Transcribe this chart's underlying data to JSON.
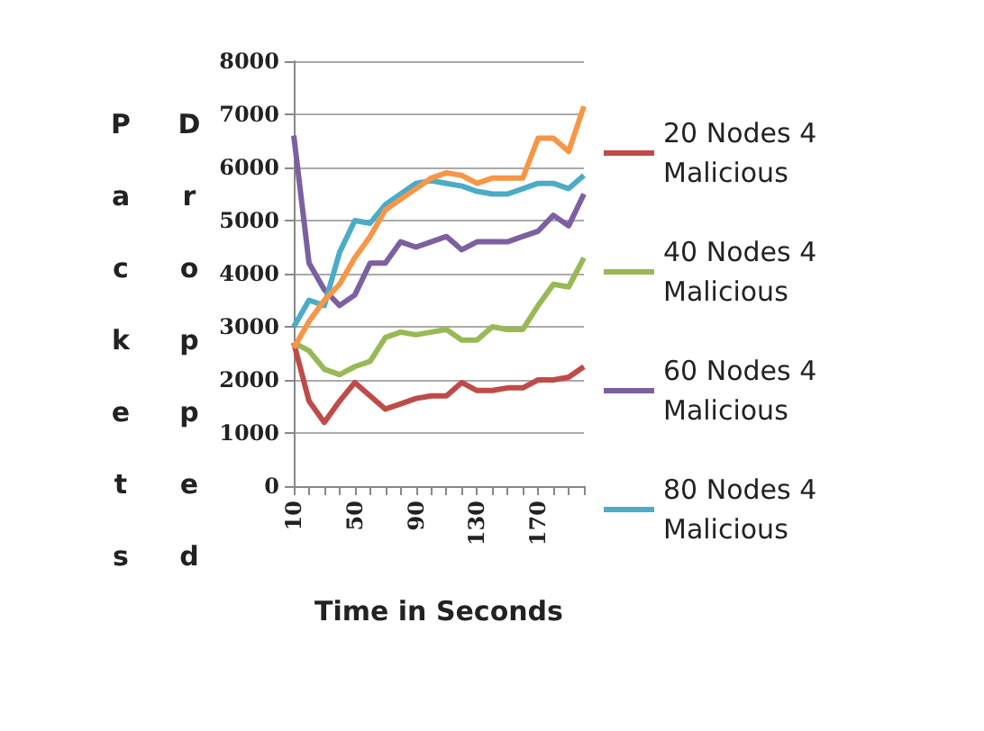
{
  "chart_data": {
    "type": "line",
    "xlabel": "Time in Seconds",
    "ylabel": "Packets Dropped",
    "categories": [
      "10",
      null,
      null,
      null,
      "50",
      null,
      null,
      null,
      "90",
      null,
      null,
      null,
      "130",
      null,
      null,
      null,
      "170",
      null,
      null,
      null
    ],
    "series": [
      {
        "name": "20 Nodes 4 Malicious",
        "color": "#be4b48",
        "values": [
          2700,
          1600,
          1200,
          1600,
          1950,
          1700,
          1450,
          1550,
          1650,
          1700,
          1700,
          1950,
          1800,
          1800,
          1850,
          1850,
          2000,
          2000,
          2050,
          2250
        ]
      },
      {
        "name": "40 Nodes 4 Malicious",
        "color": "#98b954",
        "values": [
          2700,
          2550,
          2200,
          2100,
          2250,
          2350,
          2800,
          2900,
          2850,
          2900,
          2950,
          2750,
          2750,
          3000,
          2950,
          2950,
          3400,
          3800,
          3750,
          4300
        ]
      },
      {
        "name": "60 Nodes 4 Malicious",
        "color": "#7d60a0",
        "values": [
          6600,
          4200,
          3700,
          3400,
          3600,
          4200,
          4200,
          4600,
          4500,
          4600,
          4700,
          4450,
          4600,
          4600,
          4600,
          4700,
          4800,
          5100,
          4900,
          5500
        ]
      },
      {
        "name": "80 Nodes 4 Malicious",
        "color": "#4bacc6",
        "values": [
          3000,
          3500,
          3400,
          4400,
          5000,
          4950,
          5300,
          5500,
          5700,
          5750,
          5700,
          5650,
          5550,
          5500,
          5500,
          5600,
          5700,
          5700,
          5600,
          5850
        ]
      },
      {
        "color": "#f79646",
        "values": [
          2600,
          3100,
          3500,
          3800,
          4300,
          4700,
          5200,
          5400,
          5600,
          5800,
          5900,
          5850,
          5700,
          5800,
          5800,
          5800,
          6550,
          6550,
          6300,
          7150
        ]
      }
    ],
    "ylim": [
      0,
      8000
    ],
    "yticks": [
      0,
      1000,
      2000,
      3000,
      4000,
      5000,
      6000,
      7000,
      8000
    ],
    "grid": "y",
    "legend": "right",
    "marker": "none",
    "line_style": "solid"
  }
}
